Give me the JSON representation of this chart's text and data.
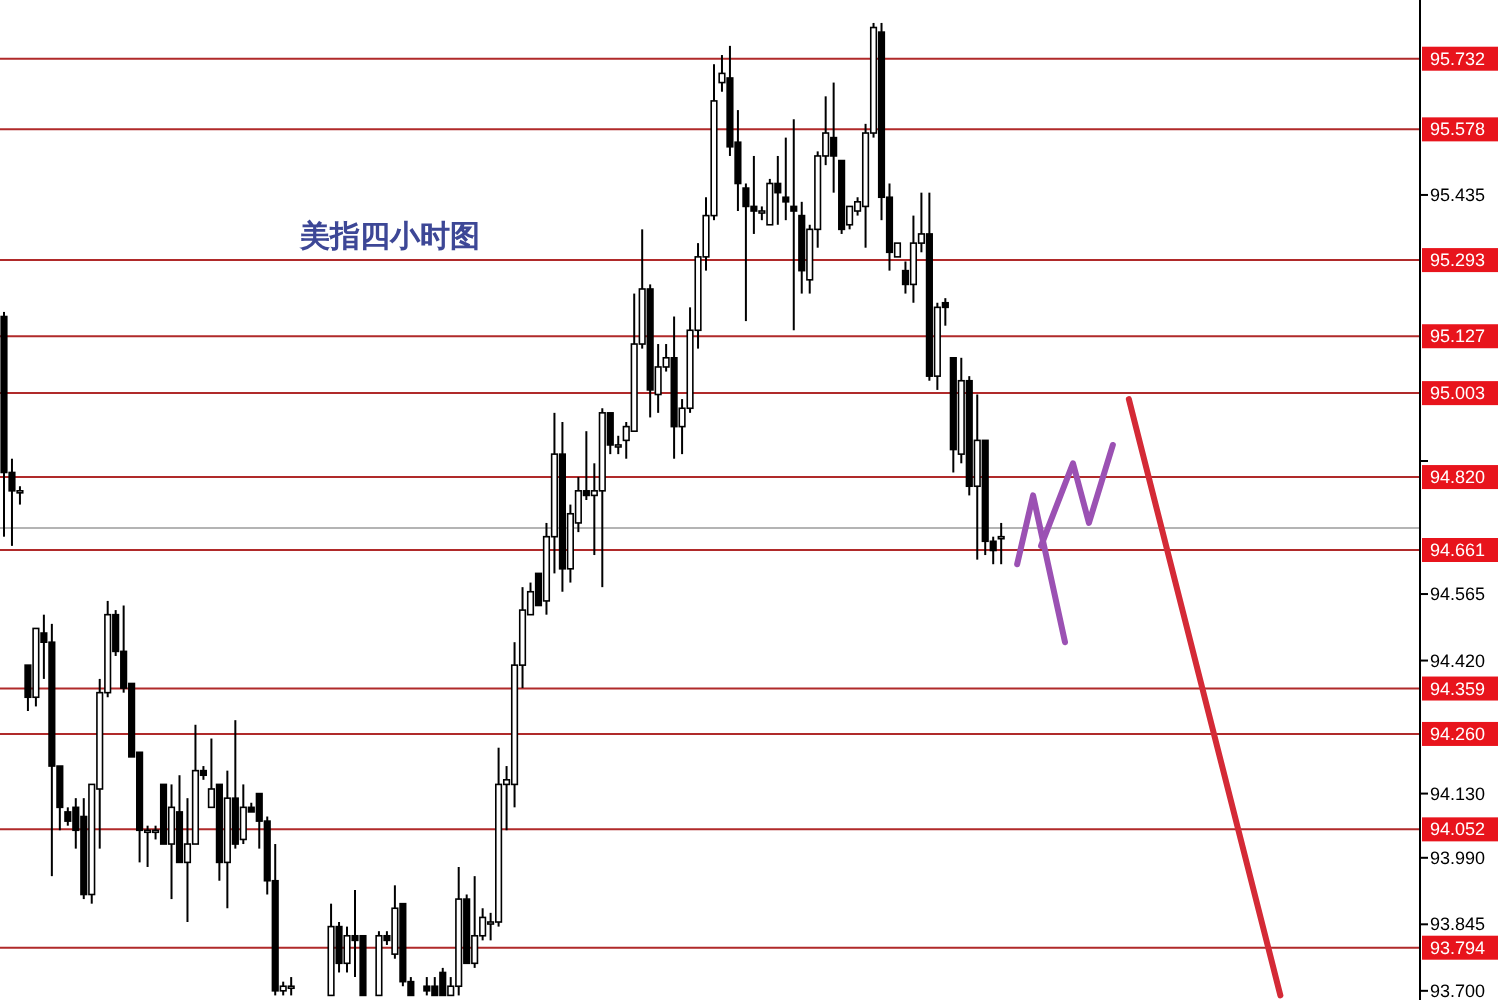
{
  "chart_data": {
    "type": "candlestick",
    "title": "美指四小时图",
    "tick_labels": "y",
    "categories": [
      null,
      null,
      null,
      null,
      null,
      null,
      null,
      null,
      null,
      null,
      null,
      null,
      null,
      null,
      null,
      null,
      null,
      null,
      null,
      null,
      null,
      null,
      null,
      null,
      null,
      null,
      null,
      null,
      null,
      null,
      null,
      null,
      null,
      null,
      null,
      null,
      null,
      null,
      null,
      null,
      null,
      null,
      null,
      null,
      null,
      null,
      null,
      null,
      null,
      null,
      null,
      null,
      null,
      null,
      null,
      null,
      null,
      null,
      null,
      null,
      null,
      null,
      null,
      null,
      null,
      null,
      null,
      null,
      null,
      null,
      null,
      null,
      null,
      null,
      null,
      null,
      null,
      null,
      null,
      null,
      null,
      null,
      null,
      null,
      null,
      null,
      null,
      null,
      null,
      null,
      null,
      null,
      null,
      null,
      null,
      null,
      null,
      null,
      null,
      null,
      null,
      null,
      null,
      null,
      null,
      null,
      null,
      null,
      null,
      null,
      null,
      null,
      null,
      null,
      null,
      null,
      null,
      null,
      null,
      null,
      null,
      null,
      null,
      null,
      null,
      null,
      null,
      null,
      null,
      null,
      null,
      null,
      null,
      null,
      null,
      null,
      null,
      null,
      null,
      null,
      null,
      null,
      null,
      null,
      null,
      null,
      null,
      null,
      null,
      null,
      null,
      null,
      null,
      null,
      null,
      null,
      null,
      null,
      null,
      null,
      null,
      null,
      null,
      null,
      null,
      null,
      null,
      null,
      null,
      null,
      null,
      null,
      null,
      null,
      null,
      null,
      null,
      null
    ],
    "ohlc": [
      [
        95.17,
        95.18,
        94.69,
        94.83
      ],
      [
        94.83,
        94.86,
        94.67,
        94.79
      ],
      [
        94.79,
        94.8,
        94.76,
        94.79
      ],
      [
        94.41,
        94.41,
        94.31,
        94.34
      ],
      [
        94.34,
        94.49,
        94.32,
        94.49
      ],
      [
        94.48,
        94.52,
        94.38,
        94.46
      ],
      [
        94.46,
        94.5,
        93.95,
        94.19
      ],
      [
        94.19,
        94.19,
        94.05,
        94.1
      ],
      [
        94.09,
        94.1,
        94.06,
        94.07
      ],
      [
        94.1,
        94.12,
        94.01,
        94.05
      ],
      [
        94.08,
        94.12,
        93.9,
        93.91
      ],
      [
        93.91,
        94.15,
        93.89,
        94.15
      ],
      [
        94.14,
        94.38,
        94.01,
        94.35
      ],
      [
        94.35,
        94.55,
        94.34,
        94.52
      ],
      [
        94.52,
        94.53,
        94.43,
        94.44
      ],
      [
        94.44,
        94.54,
        94.35,
        94.36
      ],
      [
        94.37,
        94.37,
        94.21,
        94.21
      ],
      [
        94.22,
        94.22,
        93.98,
        94.05
      ],
      [
        94.05,
        94.06,
        93.97,
        94.05
      ],
      [
        94.05,
        94.06,
        94.03,
        94.05
      ],
      [
        94.15,
        94.15,
        94.02,
        94.02
      ],
      [
        94.02,
        94.15,
        93.9,
        94.1
      ],
      [
        94.09,
        94.17,
        93.98,
        93.98
      ],
      [
        93.98,
        94.12,
        93.85,
        94.02
      ],
      [
        94.02,
        94.28,
        94.02,
        94.18
      ],
      [
        94.18,
        94.19,
        94.16,
        94.17
      ],
      [
        94.1,
        94.25,
        94.1,
        94.14
      ],
      [
        94.15,
        94.15,
        93.94,
        93.98
      ],
      [
        93.98,
        94.18,
        93.88,
        94.12
      ],
      [
        94.12,
        94.29,
        94.01,
        94.02
      ],
      [
        94.03,
        94.15,
        94.02,
        94.1
      ],
      [
        94.1,
        94.11,
        94.09,
        94.09
      ],
      [
        94.13,
        94.13,
        94.01,
        94.07
      ],
      [
        94.07,
        94.08,
        93.91,
        93.94
      ],
      [
        93.94,
        94.02,
        93.69,
        93.7
      ],
      [
        93.7,
        93.72,
        93.69,
        93.71
      ],
      [
        93.71,
        93.73,
        93.69,
        93.71
      ],
      null,
      null,
      null,
      null,
      [
        93.69,
        93.89,
        93.69,
        93.84
      ],
      [
        93.84,
        93.85,
        93.74,
        93.76
      ],
      [
        93.76,
        93.84,
        93.74,
        93.82
      ],
      [
        93.82,
        93.92,
        93.73,
        93.81
      ],
      [
        93.82,
        93.82,
        93.69,
        93.69
      ],
      null,
      [
        93.69,
        93.83,
        93.69,
        93.82
      ],
      [
        93.82,
        93.83,
        93.8,
        93.81
      ],
      [
        93.78,
        93.93,
        93.77,
        93.88
      ],
      [
        93.89,
        93.89,
        93.71,
        93.72
      ],
      [
        93.72,
        93.73,
        93.69,
        93.69
      ],
      null,
      [
        93.71,
        93.73,
        93.69,
        93.7
      ],
      [
        93.71,
        93.73,
        93.69,
        93.69
      ],
      [
        93.74,
        93.75,
        93.69,
        93.69
      ],
      [
        93.69,
        93.73,
        93.69,
        93.71
      ],
      [
        93.71,
        93.97,
        93.69,
        93.9
      ],
      [
        93.9,
        93.91,
        93.76,
        93.76
      ],
      [
        93.76,
        93.95,
        93.75,
        93.82
      ],
      [
        93.82,
        93.88,
        93.81,
        93.86
      ],
      [
        93.85,
        93.87,
        93.81,
        93.85
      ],
      [
        93.85,
        94.23,
        93.84,
        94.15
      ],
      [
        94.15,
        94.19,
        94.05,
        94.16
      ],
      [
        94.15,
        94.46,
        94.1,
        94.41
      ],
      [
        94.41,
        94.58,
        94.36,
        94.53
      ],
      [
        94.52,
        94.59,
        94.52,
        94.57
      ],
      [
        94.61,
        94.61,
        94.54,
        94.54
      ],
      [
        94.55,
        94.72,
        94.52,
        94.69
      ],
      [
        94.69,
        94.96,
        94.61,
        94.87
      ],
      [
        94.87,
        94.94,
        94.57,
        94.62
      ],
      [
        94.62,
        94.76,
        94.59,
        94.74
      ],
      [
        94.72,
        94.82,
        94.7,
        94.79
      ],
      [
        94.79,
        94.92,
        94.77,
        94.78
      ],
      [
        94.78,
        94.85,
        94.65,
        94.79
      ],
      [
        94.79,
        94.97,
        94.58,
        94.96
      ],
      [
        94.96,
        94.96,
        94.87,
        94.89
      ],
      [
        94.89,
        94.91,
        94.87,
        94.89
      ],
      [
        94.9,
        94.94,
        94.86,
        94.93
      ],
      [
        94.92,
        95.22,
        94.92,
        95.11
      ],
      [
        95.11,
        95.36,
        95.1,
        95.23
      ],
      [
        95.23,
        95.24,
        94.95,
        95.01
      ],
      [
        95.0,
        95.11,
        94.96,
        95.06
      ],
      [
        95.06,
        95.11,
        95.05,
        95.08
      ],
      [
        95.08,
        95.17,
        94.86,
        94.93
      ],
      [
        94.93,
        94.99,
        94.87,
        94.97
      ],
      [
        94.97,
        95.19,
        94.96,
        95.14
      ],
      [
        95.14,
        95.33,
        95.1,
        95.3
      ],
      [
        95.3,
        95.43,
        95.27,
        95.39
      ],
      [
        95.39,
        95.72,
        95.38,
        95.64
      ],
      [
        95.68,
        95.74,
        95.66,
        95.7
      ],
      [
        95.69,
        95.76,
        95.52,
        95.54
      ],
      [
        95.55,
        95.62,
        95.4,
        95.46
      ],
      [
        95.45,
        95.46,
        95.16,
        95.41
      ],
      [
        95.41,
        95.52,
        95.35,
        95.4
      ],
      [
        95.4,
        95.41,
        95.38,
        95.4
      ],
      [
        95.37,
        95.47,
        95.37,
        95.46
      ],
      [
        95.46,
        95.52,
        95.37,
        95.44
      ],
      [
        95.43,
        95.56,
        95.38,
        95.42
      ],
      [
        95.41,
        95.6,
        95.14,
        95.4
      ],
      [
        95.39,
        95.42,
        95.22,
        95.27
      ],
      [
        95.25,
        95.37,
        95.22,
        95.36
      ],
      [
        95.36,
        95.53,
        95.32,
        95.52
      ],
      [
        95.52,
        95.65,
        95.5,
        95.57
      ],
      [
        95.56,
        95.68,
        95.44,
        95.52
      ],
      [
        95.51,
        95.51,
        95.35,
        95.36
      ],
      [
        95.37,
        95.41,
        95.36,
        95.41
      ],
      [
        95.4,
        95.43,
        95.39,
        95.42
      ],
      [
        95.41,
        95.59,
        95.32,
        95.57
      ],
      [
        95.57,
        95.81,
        95.56,
        95.8
      ],
      [
        95.79,
        95.81,
        95.38,
        95.43
      ],
      [
        95.43,
        95.46,
        95.27,
        95.31
      ],
      [
        95.3,
        95.33,
        95.3,
        95.33
      ],
      [
        95.27,
        95.29,
        95.22,
        95.24
      ],
      [
        95.24,
        95.39,
        95.2,
        95.33
      ],
      [
        95.33,
        95.44,
        95.31,
        95.35
      ],
      [
        95.35,
        95.44,
        95.03,
        95.04
      ],
      [
        95.04,
        95.2,
        95.01,
        95.19
      ],
      [
        95.2,
        95.21,
        95.15,
        95.19
      ],
      [
        95.08,
        95.08,
        94.83,
        94.88
      ],
      [
        94.87,
        95.08,
        94.85,
        95.03
      ],
      [
        95.03,
        95.04,
        94.78,
        94.8
      ],
      [
        94.8,
        95.0,
        94.64,
        94.9
      ],
      [
        94.9,
        94.9,
        94.65,
        94.68
      ],
      [
        94.68,
        94.69,
        94.63,
        94.66
      ],
      [
        94.69,
        94.72,
        94.63,
        94.69
      ],
      null,
      null,
      null,
      null,
      null,
      null,
      null,
      null,
      null,
      null,
      null,
      null,
      null,
      null,
      null,
      null,
      null,
      null,
      null,
      null,
      null,
      null,
      null,
      null,
      null,
      null,
      null,
      null,
      null,
      null,
      null,
      null,
      null,
      null,
      null,
      null,
      null,
      null,
      null,
      null,
      null,
      null,
      null,
      null,
      null,
      null,
      null,
      null,
      null,
      null,
      null,
      null
    ],
    "series": [
      {
        "type": "line",
        "color": "#9b51b3",
        "values": [
          null,
          null,
          null,
          null,
          null,
          null,
          null,
          null,
          null,
          null,
          null,
          null,
          null,
          null,
          null,
          null,
          null,
          null,
          null,
          null,
          null,
          null,
          null,
          null,
          null,
          null,
          null,
          null,
          null,
          null,
          null,
          null,
          null,
          null,
          null,
          null,
          null,
          null,
          null,
          null,
          null,
          null,
          null,
          null,
          null,
          null,
          null,
          null,
          null,
          null,
          null,
          null,
          null,
          null,
          null,
          null,
          null,
          null,
          null,
          null,
          null,
          null,
          null,
          null,
          null,
          null,
          null,
          null,
          null,
          null,
          null,
          null,
          null,
          null,
          null,
          null,
          null,
          null,
          null,
          null,
          null,
          null,
          null,
          null,
          null,
          null,
          null,
          null,
          null,
          null,
          null,
          null,
          null,
          null,
          null,
          null,
          null,
          null,
          null,
          null,
          null,
          null,
          null,
          null,
          null,
          null,
          null,
          null,
          null,
          null,
          null,
          null,
          null,
          null,
          null,
          null,
          null,
          null,
          null,
          null,
          null,
          null,
          null,
          null,
          null,
          null,
          null,
          94.63,
          null,
          94.78,
          null,
          null,
          null,
          94.46,
          null,
          null,
          null,
          null,
          null,
          null,
          null,
          null,
          null,
          null,
          null,
          null,
          null,
          null,
          null,
          null,
          null,
          null,
          null,
          null,
          null,
          null,
          null,
          null,
          null,
          null,
          null,
          null,
          null,
          null,
          null,
          null,
          null,
          null,
          null,
          null,
          null,
          null,
          null,
          null,
          null,
          null,
          null,
          null
        ]
      },
      {
        "type": "line",
        "color": "#9b51b3",
        "values": [
          null,
          null,
          null,
          null,
          null,
          null,
          null,
          null,
          null,
          null,
          null,
          null,
          null,
          null,
          null,
          null,
          null,
          null,
          null,
          null,
          null,
          null,
          null,
          null,
          null,
          null,
          null,
          null,
          null,
          null,
          null,
          null,
          null,
          null,
          null,
          null,
          null,
          null,
          null,
          null,
          null,
          null,
          null,
          null,
          null,
          null,
          null,
          null,
          null,
          null,
          null,
          null,
          null,
          null,
          null,
          null,
          null,
          null,
          null,
          null,
          null,
          null,
          null,
          null,
          null,
          null,
          null,
          null,
          null,
          null,
          null,
          null,
          null,
          null,
          null,
          null,
          null,
          null,
          null,
          null,
          null,
          null,
          null,
          null,
          null,
          null,
          null,
          null,
          null,
          null,
          null,
          null,
          null,
          null,
          null,
          null,
          null,
          null,
          null,
          null,
          null,
          null,
          null,
          null,
          null,
          null,
          null,
          null,
          null,
          null,
          null,
          null,
          null,
          null,
          null,
          null,
          null,
          null,
          null,
          null,
          null,
          null,
          null,
          null,
          null,
          null,
          null,
          null,
          null,
          null,
          94.67,
          null,
          null,
          null,
          94.85,
          null,
          94.72,
          null,
          null,
          94.89,
          null,
          null,
          null,
          null,
          null,
          null,
          null,
          null,
          null,
          null,
          null,
          null,
          null,
          null,
          null,
          null,
          null,
          null,
          null,
          null,
          null,
          null,
          null,
          null,
          null,
          null,
          null,
          null,
          null,
          null,
          null,
          null,
          null,
          null,
          null,
          null,
          null,
          null
        ]
      },
      {
        "type": "line",
        "color": "#d42a36",
        "values": [
          null,
          null,
          null,
          null,
          null,
          null,
          null,
          null,
          null,
          null,
          null,
          null,
          null,
          null,
          null,
          null,
          null,
          null,
          null,
          null,
          null,
          null,
          null,
          null,
          null,
          null,
          null,
          null,
          null,
          null,
          null,
          null,
          null,
          null,
          null,
          null,
          null,
          null,
          null,
          null,
          null,
          null,
          null,
          null,
          null,
          null,
          null,
          null,
          null,
          null,
          null,
          null,
          null,
          null,
          null,
          null,
          null,
          null,
          null,
          null,
          null,
          null,
          null,
          null,
          null,
          null,
          null,
          null,
          null,
          null,
          null,
          null,
          null,
          null,
          null,
          null,
          null,
          null,
          null,
          null,
          null,
          null,
          null,
          null,
          null,
          null,
          null,
          null,
          null,
          null,
          null,
          null,
          null,
          null,
          null,
          null,
          null,
          null,
          null,
          null,
          null,
          null,
          null,
          null,
          null,
          null,
          null,
          null,
          null,
          null,
          null,
          null,
          null,
          null,
          null,
          null,
          null,
          null,
          null,
          null,
          null,
          null,
          null,
          null,
          null,
          null,
          null,
          null,
          null,
          null,
          null,
          null,
          null,
          null,
          null,
          null,
          null,
          null,
          null,
          null,
          null,
          94.99,
          null,
          null,
          null,
          null,
          null,
          null,
          null,
          null,
          null,
          null,
          null,
          null,
          null,
          null,
          null,
          null,
          null,
          null,
          93.69,
          null,
          null,
          null,
          null,
          null,
          null,
          null,
          null,
          null,
          null,
          null,
          null,
          null,
          null,
          null,
          null,
          null
        ]
      }
    ],
    "ylim": [
      93.68,
      95.86
    ],
    "yticks": [
      {
        "value": 95.435,
        "label": "95.435"
      },
      {
        "value": 94.855,
        "label": null
      },
      {
        "value": 94.565,
        "label": "94.565"
      },
      {
        "value": 94.42,
        "label": "94.420"
      },
      {
        "value": 94.13,
        "label": "94.130"
      },
      {
        "value": 93.99,
        "label": "93.990"
      },
      {
        "value": 93.845,
        "label": "93.845"
      },
      {
        "value": 93.7,
        "label": "93.700"
      }
    ],
    "ref_lines": [
      {
        "axis": "y",
        "value": 95.732,
        "label": "95.732",
        "color": "#b02a2a"
      },
      {
        "axis": "y",
        "value": 95.578,
        "label": "95.578",
        "color": "#b02a2a"
      },
      {
        "axis": "y",
        "value": 95.293,
        "label": "95.293",
        "color": "#b02a2a"
      },
      {
        "axis": "y",
        "value": 95.127,
        "label": "95.127",
        "color": "#b02a2a"
      },
      {
        "axis": "y",
        "value": 95.003,
        "label": "95.003",
        "color": "#b02a2a"
      },
      {
        "axis": "y",
        "value": 94.82,
        "label": "94.820",
        "color": "#b02a2a"
      },
      {
        "axis": "y",
        "value": 94.709,
        "color": "#b4b4b4"
      },
      {
        "axis": "y",
        "value": 94.661,
        "label": "94.661",
        "color": "#b02a2a"
      },
      {
        "axis": "y",
        "value": 94.359,
        "label": "94.359",
        "color": "#b02a2a"
      },
      {
        "axis": "y",
        "value": 94.26,
        "label": "94.260",
        "color": "#b02a2a"
      },
      {
        "axis": "y",
        "value": 94.052,
        "label": "94.052",
        "color": "#b02a2a"
      },
      {
        "axis": "y",
        "value": 93.794,
        "label": "93.794",
        "color": "#b02a2a"
      }
    ]
  }
}
